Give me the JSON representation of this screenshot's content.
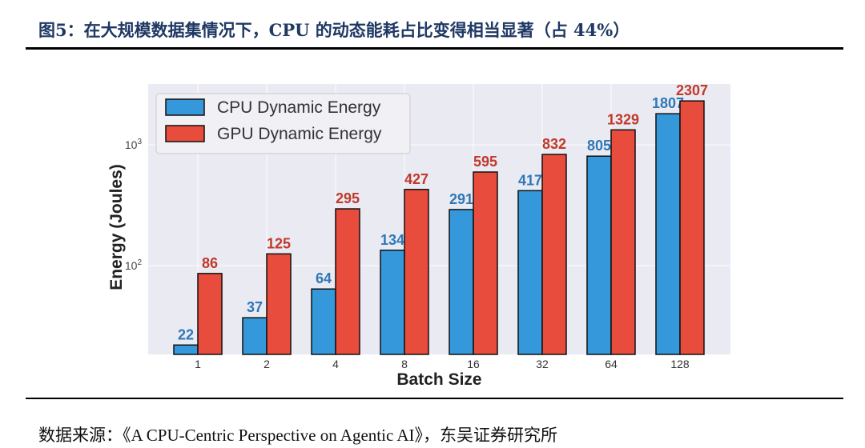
{
  "title": "图5：在大规模数据集情况下，CPU 的动态能耗占比变得相当显著（占 44%）",
  "source": "数据来源：《A CPU-Centric Perspective on Agentic AI》，东吴证券研究所",
  "chart_data": {
    "type": "bar",
    "scale": "log",
    "xlabel": "Batch Size",
    "ylabel": "Energy (Joules)",
    "categories": [
      "1",
      "2",
      "4",
      "8",
      "16",
      "32",
      "64",
      "128"
    ],
    "series": [
      {
        "name": "CPU Dynamic Energy",
        "color": "#3498db",
        "label_color": "#2e78b7",
        "values": [
          22,
          37,
          64,
          134,
          291,
          417,
          805,
          1807
        ]
      },
      {
        "name": "GPU Dynamic Energy",
        "color": "#e74c3c",
        "label_color": "#c0392b",
        "values": [
          86,
          125,
          295,
          427,
          595,
          832,
          1329,
          2307
        ]
      }
    ],
    "yticks": [
      {
        "value": 100,
        "label": "10",
        "exp": "2"
      },
      {
        "value": 1000,
        "label": "10",
        "exp": "3"
      }
    ],
    "ylim": [
      18.4,
      3185
    ],
    "grid": true,
    "legend": "top-left"
  }
}
